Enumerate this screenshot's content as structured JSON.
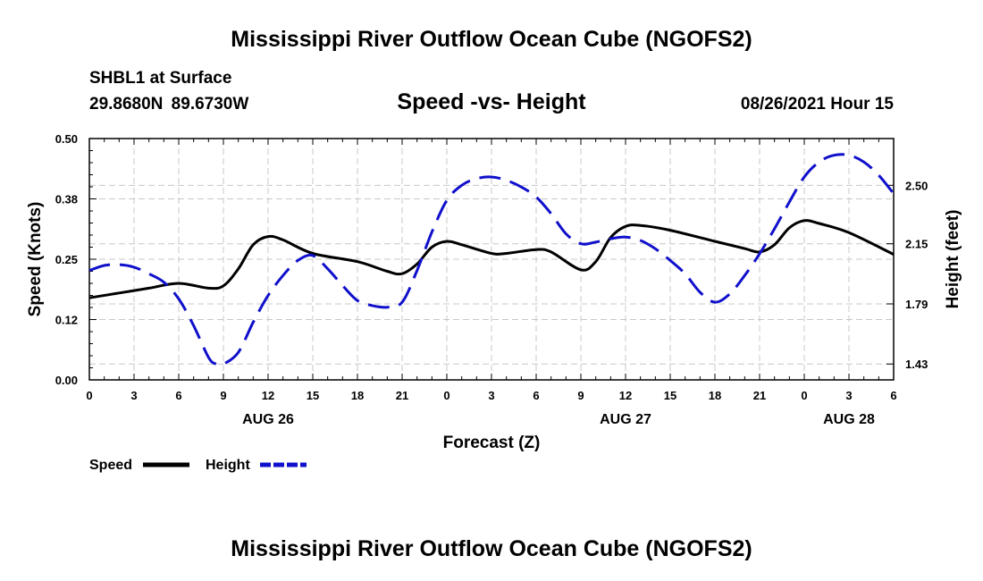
{
  "page": {
    "title": "Mississippi River Outflow Ocean Cube (NGOFS2)",
    "station": "SHBL1 at Surface",
    "coordinates": "29.8680N  89.6730W",
    "subtitle": "Speed -vs- Height",
    "datetime": "08/26/2021 Hour 15",
    "footer_title": "Mississippi River Outflow Ocean Cube (NGOFS2)"
  },
  "chart_data": {
    "type": "line",
    "title": "Speed -vs- Height",
    "xlabel": "Forecast (Z)",
    "ylabel_left": "Speed (Knots)",
    "ylabel_right": "Height (feet)",
    "x_range_hours": [
      0,
      54
    ],
    "x_ticks": [
      {
        "hour": 0,
        "label": "0"
      },
      {
        "hour": 3,
        "label": "3"
      },
      {
        "hour": 6,
        "label": "6"
      },
      {
        "hour": 9,
        "label": "9"
      },
      {
        "hour": 12,
        "label": "12"
      },
      {
        "hour": 15,
        "label": "15"
      },
      {
        "hour": 18,
        "label": "18"
      },
      {
        "hour": 21,
        "label": "21"
      },
      {
        "hour": 24,
        "label": "0"
      },
      {
        "hour": 27,
        "label": "3"
      },
      {
        "hour": 30,
        "label": "6"
      },
      {
        "hour": 33,
        "label": "9"
      },
      {
        "hour": 36,
        "label": "12"
      },
      {
        "hour": 39,
        "label": "15"
      },
      {
        "hour": 42,
        "label": "18"
      },
      {
        "hour": 45,
        "label": "21"
      },
      {
        "hour": 48,
        "label": "0"
      },
      {
        "hour": 51,
        "label": "3"
      },
      {
        "hour": 54,
        "label": "6"
      }
    ],
    "day_labels": [
      {
        "hour": 12,
        "label": "AUG 26"
      },
      {
        "hour": 36,
        "label": "AUG 27"
      },
      {
        "hour": 51,
        "label": "AUG 28"
      }
    ],
    "y_left": {
      "range": [
        0,
        0.5
      ],
      "ticks": [
        "0.00",
        "0.12",
        "0.25",
        "0.38",
        "0.50"
      ],
      "tick_values": [
        0,
        0.125,
        0.25,
        0.375,
        0.5
      ]
    },
    "y_right": {
      "range": [
        1.335,
        2.78
      ],
      "ticks": [
        "1.43",
        "1.79",
        "2.15",
        "2.50"
      ],
      "tick_values": [
        1.43,
        1.79,
        2.15,
        2.5
      ]
    },
    "grid": true,
    "series": [
      {
        "name": "Speed",
        "axis": "left",
        "color": "#000000",
        "dashed": false,
        "points": [
          [
            0,
            0.17
          ],
          [
            2,
            0.18
          ],
          [
            4,
            0.19
          ],
          [
            6,
            0.2
          ],
          [
            8,
            0.19
          ],
          [
            9,
            0.195
          ],
          [
            10,
            0.23
          ],
          [
            11,
            0.28
          ],
          [
            12,
            0.297
          ],
          [
            13,
            0.29
          ],
          [
            15,
            0.262
          ],
          [
            18,
            0.245
          ],
          [
            20,
            0.225
          ],
          [
            21,
            0.22
          ],
          [
            22,
            0.24
          ],
          [
            23,
            0.275
          ],
          [
            24,
            0.287
          ],
          [
            25,
            0.28
          ],
          [
            27,
            0.262
          ],
          [
            28,
            0.262
          ],
          [
            30,
            0.27
          ],
          [
            31,
            0.265
          ],
          [
            33,
            0.228
          ],
          [
            34,
            0.245
          ],
          [
            35,
            0.295
          ],
          [
            36,
            0.318
          ],
          [
            37,
            0.32
          ],
          [
            39,
            0.31
          ],
          [
            42,
            0.287
          ],
          [
            44,
            0.272
          ],
          [
            45,
            0.265
          ],
          [
            46,
            0.28
          ],
          [
            47,
            0.315
          ],
          [
            48,
            0.33
          ],
          [
            49,
            0.324
          ],
          [
            51,
            0.305
          ],
          [
            54,
            0.26
          ]
        ]
      },
      {
        "name": "Height",
        "axis": "right",
        "color": "#1010cc",
        "dashed": true,
        "points": [
          [
            0,
            1.99
          ],
          [
            1,
            2.02
          ],
          [
            2,
            2.025
          ],
          [
            3,
            2.01
          ],
          [
            4,
            1.97
          ],
          [
            5,
            1.92
          ],
          [
            6,
            1.82
          ],
          [
            7,
            1.66
          ],
          [
            8,
            1.47
          ],
          [
            8.5,
            1.43
          ],
          [
            9,
            1.43
          ],
          [
            10,
            1.5
          ],
          [
            11,
            1.68
          ],
          [
            12,
            1.84
          ],
          [
            13,
            1.96
          ],
          [
            14,
            2.05
          ],
          [
            15,
            2.08
          ],
          [
            16,
            2.0
          ],
          [
            17,
            1.9
          ],
          [
            18,
            1.81
          ],
          [
            19,
            1.78
          ],
          [
            20,
            1.77
          ],
          [
            21,
            1.8
          ],
          [
            22,
            1.99
          ],
          [
            23,
            2.22
          ],
          [
            24,
            2.41
          ],
          [
            25,
            2.5
          ],
          [
            26,
            2.54
          ],
          [
            27,
            2.55
          ],
          [
            28,
            2.53
          ],
          [
            29,
            2.49
          ],
          [
            30,
            2.43
          ],
          [
            31,
            2.33
          ],
          [
            32,
            2.21
          ],
          [
            33,
            2.15
          ],
          [
            34,
            2.16
          ],
          [
            35,
            2.18
          ],
          [
            36,
            2.19
          ],
          [
            37,
            2.17
          ],
          [
            38,
            2.12
          ],
          [
            39,
            2.05
          ],
          [
            40,
            1.97
          ],
          [
            41,
            1.86
          ],
          [
            42,
            1.8
          ],
          [
            43,
            1.85
          ],
          [
            44,
            1.96
          ],
          [
            45,
            2.09
          ],
          [
            46,
            2.24
          ],
          [
            47,
            2.4
          ],
          [
            48,
            2.55
          ],
          [
            49,
            2.64
          ],
          [
            50,
            2.68
          ],
          [
            51,
            2.68
          ],
          [
            52,
            2.64
          ],
          [
            53,
            2.56
          ],
          [
            54,
            2.45
          ]
        ]
      }
    ],
    "legend": [
      {
        "label": "Speed",
        "color": "#000000",
        "dashed": false
      },
      {
        "label": "Height",
        "color": "#1010cc",
        "dashed": true
      }
    ]
  }
}
